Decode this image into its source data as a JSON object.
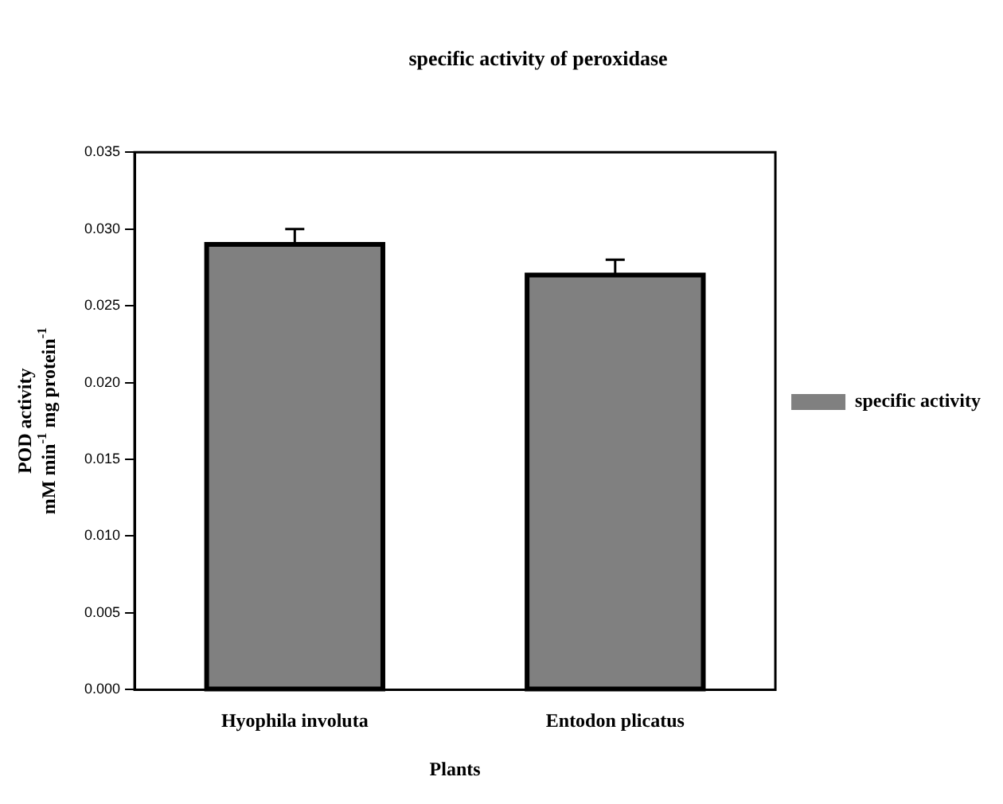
{
  "chart_data": {
    "type": "bar",
    "title": "specific activity of peroxidase",
    "xlabel": "Plants",
    "ylabel": "POD activity\nmM min$^{-1}$ mg protein$^{-1}$",
    "categories": [
      "Hyophila involuta",
      "Entodon plicatus"
    ],
    "series": [
      {
        "name": "specific activity",
        "color": "#808080",
        "values": [
          0.029,
          0.027
        ],
        "errors": [
          0.001,
          0.001
        ]
      }
    ],
    "ylim": [
      0,
      0.035
    ],
    "yticks": [
      {
        "value": 0,
        "label": "0.000"
      },
      0.005,
      {
        "value": 0.01,
        "label": "0.010"
      },
      0.015,
      {
        "value": 0.02,
        "label": "0.020"
      },
      0.025,
      {
        "value": 0.03,
        "label": "0.030"
      },
      0.035
    ],
    "grid": false,
    "legend": "right"
  }
}
